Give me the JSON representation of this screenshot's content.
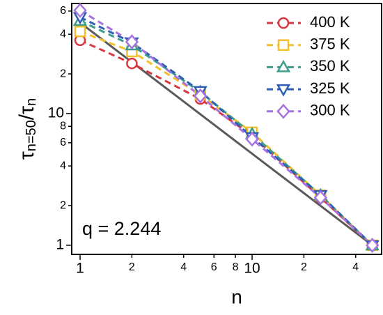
{
  "chart_data": {
    "type": "line",
    "xlabel": "n",
    "ylabel": [
      "τ",
      "n=50",
      "/τ",
      "n"
    ],
    "annotation": "q = 2.244",
    "x": [
      1,
      2,
      5,
      10,
      25,
      50
    ],
    "series": [
      {
        "name": "400 K",
        "color": "#d9363e",
        "marker": "circle",
        "values": [
          36,
          24,
          12.9,
          6.8,
          2.3,
          1
        ]
      },
      {
        "name": "375 K",
        "color": "#f3c02b",
        "marker": "square",
        "values": [
          42,
          29.6,
          13.9,
          7.2,
          2.4,
          1
        ]
      },
      {
        "name": "350 K",
        "color": "#3e9c8c",
        "marker": "triangle-up",
        "values": [
          50.6,
          33,
          14.6,
          7.0,
          2.4,
          1
        ]
      },
      {
        "name": "325 K",
        "color": "#2f5fb3",
        "marker": "triangle-down",
        "values": [
          53.9,
          34.6,
          14.8,
          6.6,
          2.4,
          1
        ]
      },
      {
        "name": "300 K",
        "color": "#a673e0",
        "marker": "diamond",
        "values": [
          60.7,
          35,
          13.6,
          6.4,
          2.3,
          1
        ]
      }
    ],
    "fit_line": {
      "color": "#5a5a5a",
      "x": [
        1,
        50
      ],
      "values": [
        49,
        1
      ]
    },
    "xlim": [
      0.894,
      56.6
    ],
    "ylim": [
      0.853,
      68.5
    ],
    "xscale": "log",
    "yscale": "log",
    "xticks": [
      1,
      2,
      4,
      6,
      8,
      10,
      {
        "value": 20,
        "label": "2"
      },
      {
        "value": 40,
        "label": "4"
      }
    ],
    "yticks": [
      1,
      2,
      4,
      6,
      8,
      10,
      {
        "value": 20,
        "label": "2"
      },
      {
        "value": 40,
        "label": "4"
      },
      {
        "value": 60,
        "label": "6"
      }
    ],
    "legend": "upper right"
  }
}
